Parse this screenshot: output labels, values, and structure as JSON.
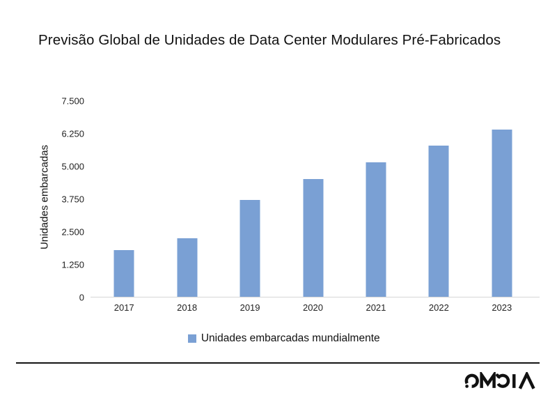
{
  "header": {
    "title": "Previsão Global de Unidades de Data Center Modulares Pré-Fabricados"
  },
  "chart_data": {
    "type": "bar",
    "title": "Previsão Global de Unidades de Data Center Modulares Pré-Fabricados",
    "xlabel": "",
    "ylabel": "Unidades embarcadas",
    "categories": [
      "2017",
      "2018",
      "2019",
      "2020",
      "2021",
      "2022",
      "2023"
    ],
    "series": [
      {
        "name": "Unidades embarcadas mundialmente",
        "values": [
          1800,
          2250,
          3700,
          4500,
          5150,
          5800,
          6400
        ]
      }
    ],
    "ylim": [
      0,
      7500
    ],
    "ytick_step": 1250,
    "ytick_labels_top_to_bottom": [
      "7.500",
      "6.250",
      "5.000",
      "3.750",
      "2.500",
      "1.250",
      "0"
    ],
    "grid": false,
    "legend_position": "bottom",
    "bar_color": "#7AA0D4",
    "axis_line_color": "#D6D6D6"
  },
  "legend": {
    "label": "Unidades embarcadas mundialmente"
  },
  "footer": {
    "brand": "OMDIA",
    "logo_color": "#111111"
  }
}
